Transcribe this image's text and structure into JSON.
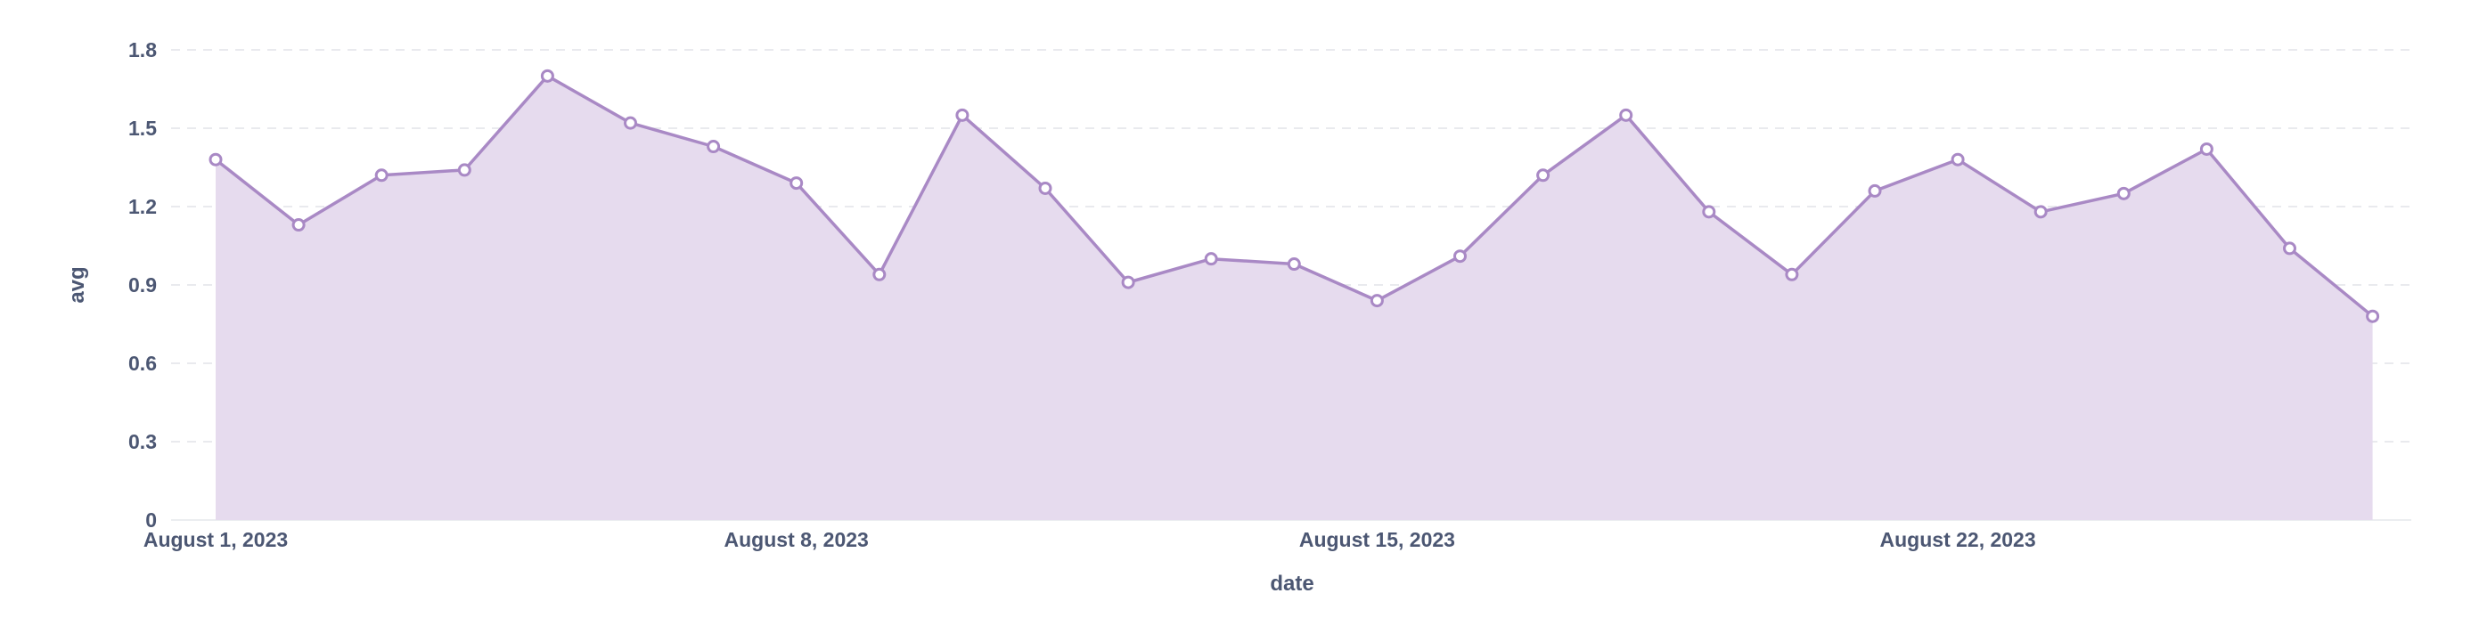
{
  "chart_data": {
    "type": "area",
    "xlabel": "date",
    "ylabel": "avg",
    "ylim": [
      0,
      1.8
    ],
    "yticks": [
      "0",
      "0.3",
      "0.6",
      "0.9",
      "1.2",
      "1.5",
      "1.8"
    ],
    "xticks": [
      {
        "label": "August 1, 2023",
        "date": "2023-08-01"
      },
      {
        "label": "August 8, 2023",
        "date": "2023-08-08"
      },
      {
        "label": "August 15, 2023",
        "date": "2023-08-15"
      },
      {
        "label": "August 22, 2023",
        "date": "2023-08-22"
      }
    ],
    "grid": true,
    "legend": "none",
    "color": "#a989c5",
    "x": [
      "2023-08-01",
      "2023-08-02",
      "2023-08-03",
      "2023-08-04",
      "2023-08-05",
      "2023-08-06",
      "2023-08-07",
      "2023-08-08",
      "2023-08-09",
      "2023-08-10",
      "2023-08-11",
      "2023-08-12",
      "2023-08-13",
      "2023-08-14",
      "2023-08-15",
      "2023-08-16",
      "2023-08-17",
      "2023-08-18",
      "2023-08-19",
      "2023-08-20",
      "2023-08-21",
      "2023-08-22",
      "2023-08-23",
      "2023-08-24",
      "2023-08-25",
      "2023-08-26",
      "2023-08-27"
    ],
    "values": [
      1.38,
      1.13,
      1.32,
      1.34,
      1.7,
      1.52,
      1.43,
      1.29,
      0.94,
      1.55,
      1.27,
      0.91,
      1.0,
      0.98,
      0.84,
      1.01,
      1.32,
      1.55,
      1.18,
      0.94,
      1.26,
      1.38,
      1.18,
      1.25,
      1.42,
      1.04,
      0.78
    ]
  }
}
